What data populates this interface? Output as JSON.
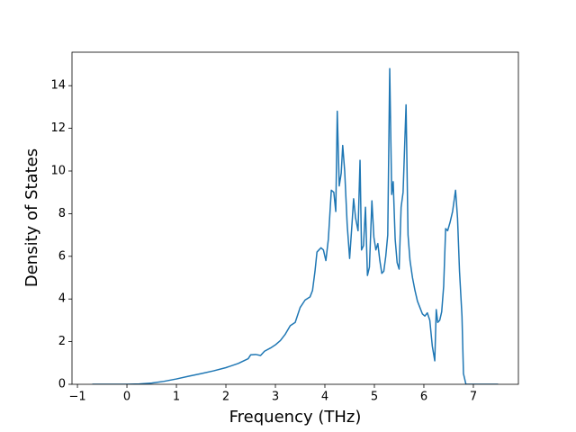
{
  "chart_data": {
    "type": "line",
    "xlabel": "Frequency (THz)",
    "ylabel": "Density of States",
    "xlim": [
      -1.11,
      7.91
    ],
    "ylim": [
      0,
      15.57
    ],
    "xticks": [
      {
        "value": -1,
        "label": "−1"
      },
      0,
      1,
      2,
      3,
      4,
      5,
      6,
      7
    ],
    "yticks": [
      0,
      2,
      4,
      6,
      8,
      10,
      12,
      14
    ],
    "grid": false,
    "series": [
      {
        "color": "#1f77b4",
        "x": [
          -0.7,
          0,
          0.25,
          0.5,
          0.75,
          1,
          1.25,
          1.5,
          1.75,
          2,
          2.25,
          2.45,
          2.5,
          2.6,
          2.7,
          2.78,
          2.9,
          3.0,
          3.1,
          3.2,
          3.3,
          3.4,
          3.5,
          3.6,
          3.7,
          3.75,
          3.8,
          3.84,
          3.88,
          3.92,
          3.97,
          4.02,
          4.07,
          4.13,
          4.18,
          4.22,
          4.25,
          4.29,
          4.33,
          4.36,
          4.4,
          4.45,
          4.5,
          4.55,
          4.58,
          4.62,
          4.67,
          4.71,
          4.74,
          4.78,
          4.82,
          4.86,
          4.9,
          4.95,
          4.99,
          5.03,
          5.07,
          5.11,
          5.15,
          5.19,
          5.23,
          5.27,
          5.31,
          5.35,
          5.38,
          5.42,
          5.46,
          5.5,
          5.54,
          5.58,
          5.64,
          5.68,
          5.72,
          5.77,
          5.82,
          5.87,
          5.92,
          5.97,
          6.02,
          6.07,
          6.12,
          6.17,
          6.22,
          6.25,
          6.28,
          6.32,
          6.36,
          6.4,
          6.44,
          6.48,
          6.53,
          6.58,
          6.64,
          6.68,
          6.72,
          6.77,
          6.8,
          6.85,
          7.5
        ],
        "values": [
          0,
          0,
          0.015,
          0.06,
          0.14,
          0.25,
          0.38,
          0.5,
          0.63,
          0.78,
          0.98,
          1.2,
          1.38,
          1.4,
          1.35,
          1.55,
          1.7,
          1.85,
          2.05,
          2.35,
          2.75,
          2.9,
          3.6,
          3.95,
          4.1,
          4.4,
          5.3,
          6.2,
          6.3,
          6.4,
          6.3,
          5.8,
          6.8,
          9.1,
          9.0,
          8.1,
          12.8,
          9.3,
          9.9,
          11.2,
          10,
          7.5,
          5.9,
          7.6,
          8.7,
          7.8,
          7.2,
          10.5,
          6.3,
          6.5,
          8.3,
          5.1,
          5.5,
          8.6,
          6.9,
          6.3,
          6.6,
          5.8,
          5.2,
          5.3,
          6,
          7,
          14.8,
          8.9,
          9.5,
          6.8,
          5.7,
          5.4,
          8.3,
          9,
          13.1,
          7,
          5.8,
          5,
          4.4,
          3.9,
          3.6,
          3.3,
          3.2,
          3.35,
          3.0,
          1.8,
          1.1,
          3.5,
          2.9,
          3.0,
          3.4,
          4.6,
          7.3,
          7.2,
          7.6,
          8.1,
          9.1,
          7.8,
          5.3,
          3.2,
          0.5,
          0,
          0
        ]
      }
    ]
  }
}
